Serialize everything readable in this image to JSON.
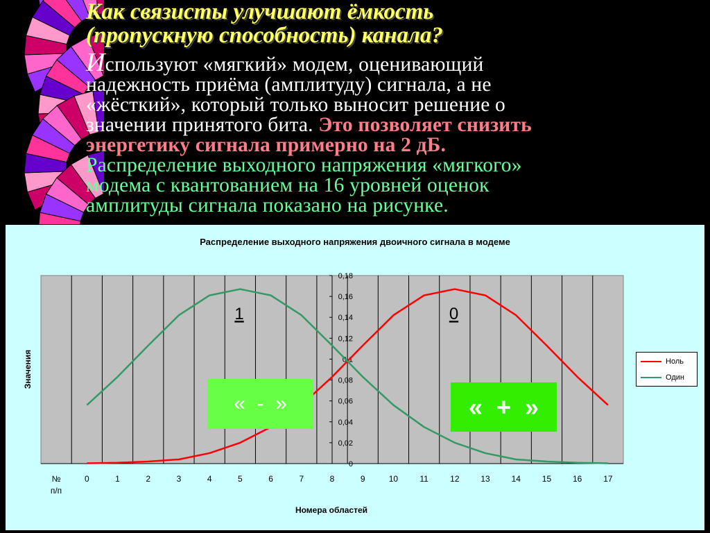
{
  "heading": {
    "line1": "Как связисты улучшают ёмкость",
    "line2": "(пропускную способность) канала?"
  },
  "body": {
    "drop_cap": "И",
    "line1_rest": "спользуют «мягкий» модем, оценивающий",
    "line2": "надежность приёма (амплитуду) сигнала, а не",
    "line3": "«жёсткий», который только выносит решение о",
    "line4_white": "значении принятого бита.",
    "line4_pink": "Это позволяет снизить",
    "line5_pink": "энергетику сигнала примерно на 2 дБ.",
    "line6_green": "Распределение выходного напряжения «мягкого»",
    "line7_green": "модема с квантованием на 16 уровней оценок",
    "line8_green": "амплитуды сигнала показано на рисунке."
  },
  "colors": {
    "heading": "#FFFF66",
    "highlight": "#FF7C8A",
    "green_text": "#66FF99",
    "chart_bg": "#CCFFFF",
    "plot_bg": "#C0C0C0",
    "series_zero": "#FF0000",
    "series_one": "#339966",
    "box_green": "#66FF33"
  },
  "chart_data": {
    "type": "line",
    "title": "Распределение выходного напряжения двоичного сигнала в модеме",
    "xlabel": "Номера областей",
    "ylabel": "Значения",
    "x_header": "№ п/п",
    "x": [
      0,
      1,
      2,
      3,
      4,
      5,
      6,
      7,
      8,
      9,
      10,
      11,
      12,
      13,
      14,
      15,
      16,
      17
    ],
    "y_ticks": [
      "0",
      "0,02",
      "0,04",
      "0,06",
      "0,08",
      "0,1",
      "0,12",
      "0,14",
      "0,16",
      "0,18"
    ],
    "ylim": [
      0,
      0.18
    ],
    "grid": "vertical",
    "legend_position": "right",
    "series": [
      {
        "name": "Ноль",
        "color": "#FF0000",
        "values": [
          0.0003,
          0.0008,
          0.002,
          0.004,
          0.01,
          0.02,
          0.035,
          0.056,
          0.083,
          0.113,
          0.142,
          0.161,
          0.167,
          0.161,
          0.142,
          0.113,
          0.083,
          0.056
        ]
      },
      {
        "name": "Один",
        "color": "#339966",
        "values": [
          0.056,
          0.083,
          0.113,
          0.142,
          0.161,
          0.167,
          0.161,
          0.142,
          0.113,
          0.083,
          0.056,
          0.035,
          0.02,
          0.01,
          0.004,
          0.002,
          0.0008,
          0.0003
        ]
      }
    ],
    "annotations": [
      {
        "text": "1",
        "x": 5,
        "y": 0.138
      },
      {
        "text": "0",
        "x": 12,
        "y": 0.138
      }
    ]
  },
  "overlays": {
    "minus_label": "«  -  »",
    "plus_label": "«  +  »"
  }
}
